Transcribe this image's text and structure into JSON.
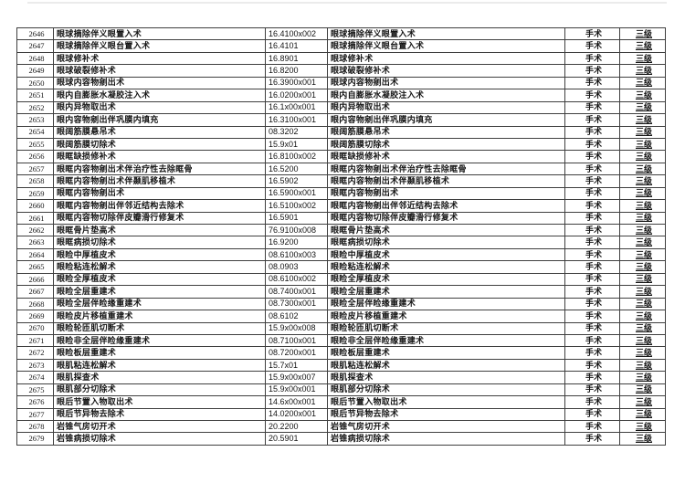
{
  "document": {
    "table": {
      "category_value": "手术",
      "level_value": "三级",
      "rows": [
        {
          "no": "2646",
          "name": "眼球摘除伴义眼置入术",
          "code": "16.4100x002"
        },
        {
          "no": "2647",
          "name": "眼球摘除伴义眼台置入术",
          "code": "16.4101"
        },
        {
          "no": "2648",
          "name": "眼球修补术",
          "code": "16.8901"
        },
        {
          "no": "2649",
          "name": "眼球破裂修补术",
          "code": "16.8200"
        },
        {
          "no": "2650",
          "name": "眼球内容物剜出术",
          "code": "16.3900x001"
        },
        {
          "no": "2651",
          "name": "眼内自膨胀水凝胶注入术",
          "code": "16.0200x001"
        },
        {
          "no": "2652",
          "name": "眼内异物取出术",
          "code": "16.1x00x001"
        },
        {
          "no": "2653",
          "name": "眼内容物剜出伴巩膜内填充",
          "code": "16.3100x001"
        },
        {
          "no": "2654",
          "name": "眼阔筋膜悬吊术",
          "code": "08.3202"
        },
        {
          "no": "2655",
          "name": "眼阔筋膜切除术",
          "code": "15.9x01"
        },
        {
          "no": "2656",
          "name": "眼眶缺损修补术",
          "code": "16.8100x002"
        },
        {
          "no": "2657",
          "name": "眼眶内容物剜出术伴治疗性去除眶骨",
          "code": "16.5200"
        },
        {
          "no": "2658",
          "name": "眼眶内容物剜出术伴颞肌移植术",
          "code": "16.5902"
        },
        {
          "no": "2659",
          "name": "眼眶内容物剜出术",
          "code": "16.5900x001"
        },
        {
          "no": "2660",
          "name": "眼眶内容物剜出伴邻近结构去除术",
          "code": "16.5100x002"
        },
        {
          "no": "2661",
          "name": "眼眶内容物切除伴皮瓣滑行修复术",
          "code": "16.5901"
        },
        {
          "no": "2662",
          "name": "眼眶骨片垫高术",
          "code": "76.9100x008"
        },
        {
          "no": "2663",
          "name": "眼眶病损切除术",
          "code": "16.9200"
        },
        {
          "no": "2664",
          "name": "眼睑中厚植皮术",
          "code": "08.6100x003"
        },
        {
          "no": "2665",
          "name": "眼睑粘连松解术",
          "code": "08.0903"
        },
        {
          "no": "2666",
          "name": "眼睑全厚植皮术",
          "code": "08.6100x002"
        },
        {
          "no": "2667",
          "name": "眼睑全层重建术",
          "code": "08.7400x001"
        },
        {
          "no": "2668",
          "name": "眼睑全层伴睑缘重建术",
          "code": "08.7300x001"
        },
        {
          "no": "2669",
          "name": "眼睑皮片移植重建术",
          "code": "08.6102"
        },
        {
          "no": "2670",
          "name": "眼睑轮匝肌切断术",
          "code": "15.9x00x008"
        },
        {
          "no": "2671",
          "name": "眼睑非全层伴睑缘重建术",
          "code": "08.7100x001"
        },
        {
          "no": "2672",
          "name": "眼睑板层重建术",
          "code": "08.7200x001"
        },
        {
          "no": "2673",
          "name": "眼肌粘连松解术",
          "code": "15.7x01"
        },
        {
          "no": "2674",
          "name": "眼肌探查术",
          "code": "15.9x00x007"
        },
        {
          "no": "2675",
          "name": "眼肌部分切除术",
          "code": "15.9x00x001"
        },
        {
          "no": "2676",
          "name": "眼后节置入物取出术",
          "code": "14.6x00x001"
        },
        {
          "no": "2677",
          "name": "眼后节异物去除术",
          "code": "14.0200x001"
        },
        {
          "no": "2678",
          "name": "岩锥气房切开术",
          "code": "20.2200"
        },
        {
          "no": "2679",
          "name": "岩锥病损切除术",
          "code": "20.5901"
        }
      ]
    }
  }
}
